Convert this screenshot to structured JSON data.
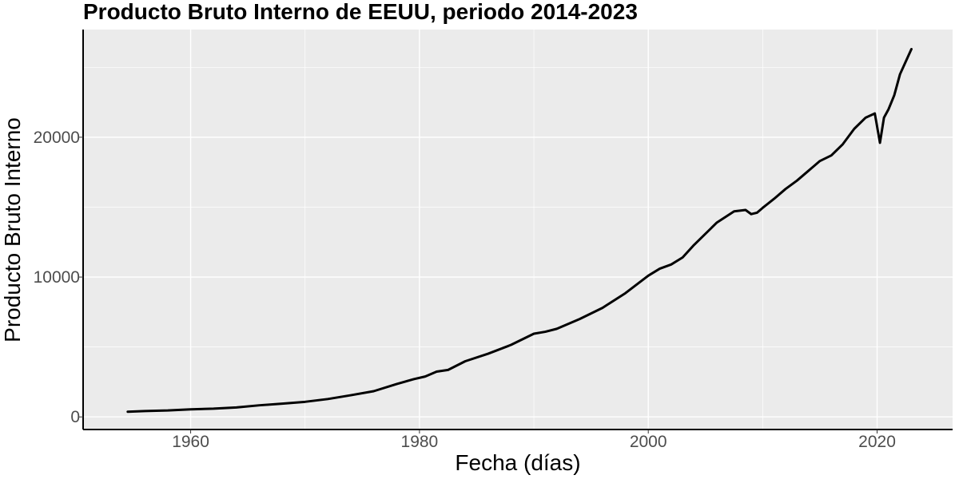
{
  "chart_data": {
    "type": "line",
    "title": "Producto Bruto Interno de EEUU, periodo 2014-2023",
    "xlabel": "Fecha (días)",
    "ylabel": "Producto Bruto Interno",
    "xlim": [
      1950.6,
      2026.6
    ],
    "ylim": [
      -900,
      27700
    ],
    "x_ticks": [
      1960,
      1980,
      2000,
      2020
    ],
    "x_tick_labels": [
      "1960",
      "1980",
      "2000",
      "2020"
    ],
    "y_ticks": [
      0,
      10000,
      20000
    ],
    "y_tick_labels": [
      "0",
      "10000",
      "20000"
    ],
    "grid": true,
    "legend": "none",
    "colors": {
      "panel": "#ebebeb",
      "grid": "#ffffff",
      "line": "#000000",
      "axis": "#000000",
      "tick_text": "#4d4d4d"
    },
    "series": [
      {
        "x": [
          1954.5,
          1956,
          1958,
          1960,
          1962,
          1964,
          1966,
          1968,
          1970,
          1972,
          1974,
          1976,
          1978,
          1979.5,
          1980.5,
          1981.5,
          1982.5,
          1984,
          1986,
          1988,
          1990,
          1991,
          1992,
          1994,
          1996,
          1998,
          2000,
          2001,
          2002,
          2003,
          2004,
          2006,
          2007.5,
          2008.5,
          2009,
          2009.5,
          2010,
          2011,
          2012,
          2013,
          2014,
          2015,
          2016,
          2017,
          2018,
          2019,
          2019.8,
          2020.25,
          2020.6,
          2021,
          2021.5,
          2022,
          2022.5,
          2023
        ],
        "y": [
          370,
          420,
          460,
          540,
          590,
          680,
          830,
          950,
          1080,
          1280,
          1550,
          1840,
          2350,
          2700,
          2890,
          3240,
          3360,
          3980,
          4520,
          5150,
          5950,
          6090,
          6300,
          7000,
          7800,
          8850,
          10100,
          10600,
          10900,
          11400,
          12300,
          13900,
          14700,
          14800,
          14500,
          14600,
          14950,
          15600,
          16300,
          16900,
          17600,
          18300,
          18700,
          19500,
          20600,
          21400,
          21700,
          19600,
          21400,
          22000,
          23000,
          24500,
          25400,
          26300
        ]
      }
    ]
  }
}
